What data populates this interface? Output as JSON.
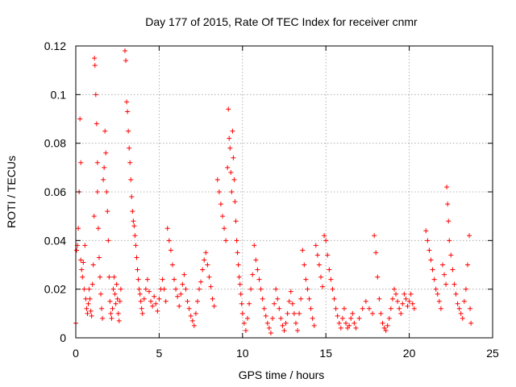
{
  "chart_data": {
    "type": "scatter",
    "title": "Day 177 of 2015, Rate Of TEC Index for receiver cnmr",
    "xlabel": "GPS time / hours",
    "ylabel": "ROTI / TECUs",
    "xlim": [
      0,
      25
    ],
    "ylim": [
      0,
      0.12
    ],
    "xticks": [
      0,
      5,
      10,
      15,
      20,
      25
    ],
    "xtick_labels": [
      "0",
      "5",
      "10",
      "15",
      "20",
      "25"
    ],
    "yticks": [
      0,
      0.02,
      0.04,
      0.06,
      0.08,
      0.1,
      0.12
    ],
    "ytick_labels": [
      "0",
      "0.02",
      "0.04",
      "0.06",
      "0.08",
      "0.1",
      "0.12"
    ],
    "grid": true,
    "marker": "+",
    "color": "#ff0000",
    "series": [
      {
        "name": "ROTI",
        "points": [
          [
            0.0,
            0.006
          ],
          [
            0.05,
            0.036
          ],
          [
            0.1,
            0.038
          ],
          [
            0.15,
            0.045
          ],
          [
            0.2,
            0.06
          ],
          [
            0.25,
            0.09
          ],
          [
            0.3,
            0.072
          ],
          [
            0.3,
            0.032
          ],
          [
            0.35,
            0.028
          ],
          [
            0.4,
            0.025
          ],
          [
            0.45,
            0.031
          ],
          [
            0.5,
            0.02
          ],
          [
            0.55,
            0.038
          ],
          [
            0.6,
            0.016
          ],
          [
            0.65,
            0.012
          ],
          [
            0.7,
            0.01
          ],
          [
            0.75,
            0.014
          ],
          [
            0.8,
            0.02
          ],
          [
            0.85,
            0.016
          ],
          [
            0.9,
            0.011
          ],
          [
            0.95,
            0.009
          ],
          [
            1.0,
            0.022
          ],
          [
            1.05,
            0.03
          ],
          [
            1.1,
            0.05
          ],
          [
            1.12,
            0.115
          ],
          [
            1.15,
            0.112
          ],
          [
            1.2,
            0.1
          ],
          [
            1.25,
            0.088
          ],
          [
            1.3,
            0.072
          ],
          [
            1.3,
            0.06
          ],
          [
            1.35,
            0.045
          ],
          [
            1.4,
            0.033
          ],
          [
            1.45,
            0.025
          ],
          [
            1.5,
            0.018
          ],
          [
            1.55,
            0.012
          ],
          [
            1.6,
            0.008
          ],
          [
            1.65,
            0.065
          ],
          [
            1.7,
            0.07
          ],
          [
            1.75,
            0.085
          ],
          [
            1.8,
            0.076
          ],
          [
            1.85,
            0.06
          ],
          [
            1.9,
            0.052
          ],
          [
            1.95,
            0.04
          ],
          [
            2.0,
            0.025
          ],
          [
            2.05,
            0.015
          ],
          [
            2.1,
            0.01
          ],
          [
            2.15,
            0.008
          ],
          [
            2.2,
            0.012
          ],
          [
            2.25,
            0.02
          ],
          [
            2.3,
            0.025
          ],
          [
            2.35,
            0.018
          ],
          [
            2.4,
            0.014
          ],
          [
            2.45,
            0.022
          ],
          [
            2.5,
            0.016
          ],
          [
            2.55,
            0.01
          ],
          [
            2.6,
            0.007
          ],
          [
            2.65,
            0.015
          ],
          [
            2.7,
            0.02
          ],
          [
            2.95,
            0.118
          ],
          [
            3.0,
            0.114
          ],
          [
            3.05,
            0.097
          ],
          [
            3.1,
            0.093
          ],
          [
            3.15,
            0.085
          ],
          [
            3.2,
            0.078
          ],
          [
            3.25,
            0.072
          ],
          [
            3.3,
            0.065
          ],
          [
            3.35,
            0.058
          ],
          [
            3.4,
            0.052
          ],
          [
            3.45,
            0.048
          ],
          [
            3.5,
            0.046
          ],
          [
            3.55,
            0.042
          ],
          [
            3.6,
            0.038
          ],
          [
            3.65,
            0.033
          ],
          [
            3.7,
            0.028
          ],
          [
            3.75,
            0.024
          ],
          [
            3.8,
            0.02
          ],
          [
            3.85,
            0.018
          ],
          [
            3.9,
            0.015
          ],
          [
            3.95,
            0.012
          ],
          [
            4.0,
            0.01
          ],
          [
            4.1,
            0.016
          ],
          [
            4.2,
            0.02
          ],
          [
            4.3,
            0.024
          ],
          [
            4.4,
            0.019
          ],
          [
            4.5,
            0.015
          ],
          [
            4.6,
            0.013
          ],
          [
            4.7,
            0.017
          ],
          [
            4.8,
            0.014
          ],
          [
            4.9,
            0.011
          ],
          [
            5.0,
            0.016
          ],
          [
            5.1,
            0.02
          ],
          [
            5.2,
            0.024
          ],
          [
            5.3,
            0.02
          ],
          [
            5.4,
            0.015
          ],
          [
            5.5,
            0.045
          ],
          [
            5.6,
            0.04
          ],
          [
            5.7,
            0.036
          ],
          [
            5.8,
            0.03
          ],
          [
            5.9,
            0.024
          ],
          [
            6.0,
            0.02
          ],
          [
            6.1,
            0.017
          ],
          [
            6.2,
            0.013
          ],
          [
            6.3,
            0.018
          ],
          [
            6.4,
            0.022
          ],
          [
            6.5,
            0.026
          ],
          [
            6.6,
            0.02
          ],
          [
            6.7,
            0.015
          ],
          [
            6.8,
            0.012
          ],
          [
            6.9,
            0.009
          ],
          [
            7.0,
            0.007
          ],
          [
            7.1,
            0.005
          ],
          [
            7.2,
            0.01
          ],
          [
            7.3,
            0.015
          ],
          [
            7.4,
            0.02
          ],
          [
            7.5,
            0.023
          ],
          [
            7.6,
            0.028
          ],
          [
            7.7,
            0.032
          ],
          [
            7.8,
            0.035
          ],
          [
            7.9,
            0.03
          ],
          [
            8.0,
            0.025
          ],
          [
            8.1,
            0.021
          ],
          [
            8.2,
            0.016
          ],
          [
            8.3,
            0.013
          ],
          [
            8.5,
            0.065
          ],
          [
            8.6,
            0.06
          ],
          [
            8.7,
            0.055
          ],
          [
            8.8,
            0.05
          ],
          [
            8.9,
            0.045
          ],
          [
            9.0,
            0.04
          ],
          [
            9.1,
            0.07
          ],
          [
            9.15,
            0.094
          ],
          [
            9.2,
            0.082
          ],
          [
            9.25,
            0.078
          ],
          [
            9.3,
            0.068
          ],
          [
            9.35,
            0.06
          ],
          [
            9.4,
            0.085
          ],
          [
            9.45,
            0.074
          ],
          [
            9.5,
            0.065
          ],
          [
            9.55,
            0.056
          ],
          [
            9.6,
            0.048
          ],
          [
            9.65,
            0.04
          ],
          [
            9.7,
            0.035
          ],
          [
            9.75,
            0.03
          ],
          [
            9.8,
            0.025
          ],
          [
            9.85,
            0.022
          ],
          [
            9.9,
            0.018
          ],
          [
            9.95,
            0.014
          ],
          [
            10.0,
            0.01
          ],
          [
            10.1,
            0.006
          ],
          [
            10.2,
            0.003
          ],
          [
            10.3,
            0.008
          ],
          [
            10.4,
            0.014
          ],
          [
            10.5,
            0.02
          ],
          [
            10.6,
            0.026
          ],
          [
            10.7,
            0.038
          ],
          [
            10.8,
            0.032
          ],
          [
            10.9,
            0.028
          ],
          [
            11.0,
            0.024
          ],
          [
            11.1,
            0.02
          ],
          [
            11.2,
            0.016
          ],
          [
            11.3,
            0.012
          ],
          [
            11.4,
            0.009
          ],
          [
            11.5,
            0.006
          ],
          [
            11.6,
            0.004
          ],
          [
            11.7,
            0.002
          ],
          [
            11.8,
            0.008
          ],
          [
            11.9,
            0.014
          ],
          [
            12.0,
            0.02
          ],
          [
            12.1,
            0.016
          ],
          [
            12.2,
            0.012
          ],
          [
            12.3,
            0.008
          ],
          [
            12.4,
            0.005
          ],
          [
            12.5,
            0.003
          ],
          [
            12.6,
            0.006
          ],
          [
            12.7,
            0.01
          ],
          [
            12.8,
            0.015
          ],
          [
            12.9,
            0.019
          ],
          [
            13.0,
            0.014
          ],
          [
            13.1,
            0.01
          ],
          [
            13.2,
            0.006
          ],
          [
            13.3,
            0.003
          ],
          [
            13.4,
            0.01
          ],
          [
            13.5,
            0.016
          ],
          [
            13.6,
            0.036
          ],
          [
            13.7,
            0.03
          ],
          [
            13.8,
            0.024
          ],
          [
            13.9,
            0.02
          ],
          [
            14.0,
            0.016
          ],
          [
            14.1,
            0.012
          ],
          [
            14.2,
            0.008
          ],
          [
            14.3,
            0.005
          ],
          [
            14.4,
            0.038
          ],
          [
            14.5,
            0.034
          ],
          [
            14.6,
            0.03
          ],
          [
            14.7,
            0.025
          ],
          [
            14.8,
            0.021
          ],
          [
            14.9,
            0.042
          ],
          [
            15.0,
            0.04
          ],
          [
            15.1,
            0.034
          ],
          [
            15.2,
            0.028
          ],
          [
            15.3,
            0.024
          ],
          [
            15.4,
            0.02
          ],
          [
            15.5,
            0.016
          ],
          [
            15.6,
            0.012
          ],
          [
            15.7,
            0.009
          ],
          [
            15.8,
            0.006
          ],
          [
            15.9,
            0.004
          ],
          [
            16.0,
            0.008
          ],
          [
            16.1,
            0.012
          ],
          [
            16.2,
            0.006
          ],
          [
            16.3,
            0.004
          ],
          [
            16.4,
            0.005
          ],
          [
            16.5,
            0.008
          ],
          [
            16.6,
            0.01
          ],
          [
            16.7,
            0.006
          ],
          [
            16.8,
            0.004
          ],
          [
            17.0,
            0.008
          ],
          [
            17.2,
            0.012
          ],
          [
            17.4,
            0.015
          ],
          [
            17.6,
            0.012
          ],
          [
            17.8,
            0.01
          ],
          [
            17.9,
            0.042
          ],
          [
            18.0,
            0.035
          ],
          [
            18.1,
            0.025
          ],
          [
            18.2,
            0.016
          ],
          [
            18.3,
            0.01
          ],
          [
            18.4,
            0.006
          ],
          [
            18.5,
            0.004
          ],
          [
            18.6,
            0.003
          ],
          [
            18.7,
            0.005
          ],
          [
            18.8,
            0.008
          ],
          [
            18.9,
            0.012
          ],
          [
            19.0,
            0.016
          ],
          [
            19.1,
            0.02
          ],
          [
            19.2,
            0.018
          ],
          [
            19.3,
            0.015
          ],
          [
            19.4,
            0.012
          ],
          [
            19.5,
            0.01
          ],
          [
            19.6,
            0.014
          ],
          [
            19.7,
            0.018
          ],
          [
            19.8,
            0.016
          ],
          [
            19.9,
            0.013
          ],
          [
            20.0,
            0.015
          ],
          [
            20.1,
            0.018
          ],
          [
            20.2,
            0.014
          ],
          [
            20.3,
            0.012
          ],
          [
            21.0,
            0.044
          ],
          [
            21.1,
            0.04
          ],
          [
            21.2,
            0.036
          ],
          [
            21.3,
            0.032
          ],
          [
            21.4,
            0.028
          ],
          [
            21.5,
            0.024
          ],
          [
            21.6,
            0.02
          ],
          [
            21.7,
            0.018
          ],
          [
            21.8,
            0.015
          ],
          [
            21.9,
            0.012
          ],
          [
            22.0,
            0.03
          ],
          [
            22.1,
            0.026
          ],
          [
            22.2,
            0.022
          ],
          [
            22.25,
            0.062
          ],
          [
            22.3,
            0.055
          ],
          [
            22.35,
            0.048
          ],
          [
            22.4,
            0.04
          ],
          [
            22.5,
            0.034
          ],
          [
            22.6,
            0.028
          ],
          [
            22.7,
            0.022
          ],
          [
            22.8,
            0.018
          ],
          [
            22.9,
            0.014
          ],
          [
            23.0,
            0.012
          ],
          [
            23.1,
            0.01
          ],
          [
            23.2,
            0.008
          ],
          [
            23.3,
            0.015
          ],
          [
            23.4,
            0.02
          ],
          [
            23.5,
            0.03
          ],
          [
            23.6,
            0.042
          ],
          [
            23.65,
            0.012
          ],
          [
            23.7,
            0.006
          ]
        ]
      }
    ]
  }
}
